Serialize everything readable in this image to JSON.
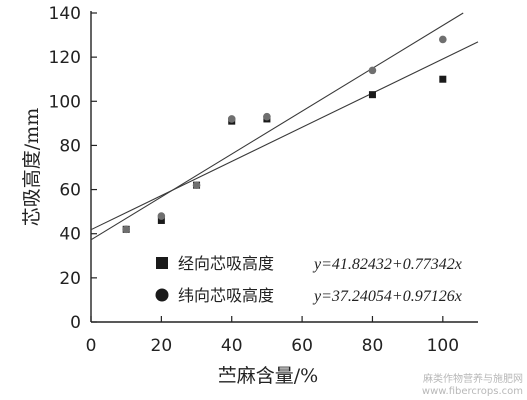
{
  "chart_data": {
    "type": "scatter",
    "xlabel": "苎麻含量/%",
    "ylabel": "芯吸高度/mm",
    "xlim": [
      0,
      110
    ],
    "ylim": [
      0,
      140
    ],
    "xticks": [
      0,
      20,
      40,
      60,
      80,
      100
    ],
    "yticks": [
      0,
      20,
      40,
      60,
      80,
      100,
      120,
      140
    ],
    "legend_position": "bottom-right",
    "series": [
      {
        "name": "经向芯吸高度",
        "marker": "square",
        "color": "#1a1a1a",
        "x": [
          10,
          20,
          30,
          40,
          50,
          80,
          100
        ],
        "y": [
          42,
          46,
          62,
          91,
          92,
          103,
          110
        ],
        "fit": {
          "equation": "y=41.82432+0.77342x",
          "intercept": 41.82432,
          "slope": 0.77342
        }
      },
      {
        "name": "纬向芯吸高度",
        "marker": "circle",
        "color": "#6f6f6f",
        "x": [
          10,
          20,
          30,
          40,
          50,
          80,
          100
        ],
        "y": [
          42,
          48,
          62,
          92,
          93,
          114,
          128
        ],
        "fit": {
          "equation": "y=37.24054+0.97126x",
          "intercept": 37.24054,
          "slope": 0.97126
        }
      }
    ]
  },
  "watermark": {
    "line1": "麻类作物营养与施肥网",
    "line2": "www.fibercrops.com"
  }
}
